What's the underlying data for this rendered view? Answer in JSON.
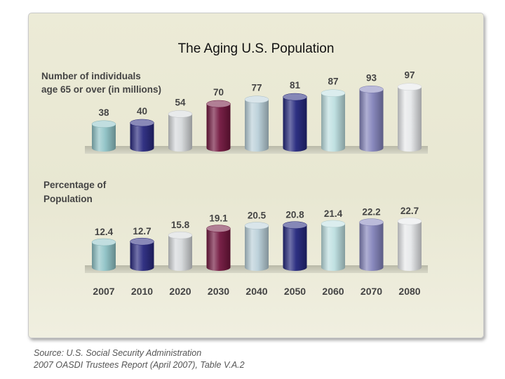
{
  "chart_data": {
    "type": "bar",
    "title": "The Aging U.S. Population",
    "categories": [
      "2007",
      "2010",
      "2020",
      "2030",
      "2040",
      "2050",
      "2060",
      "2070",
      "2080"
    ],
    "bar_colors": [
      "#8fc3c6",
      "#28287e",
      "#d6d9db",
      "#72163e",
      "#b9d0d9",
      "#23267c",
      "#bddfe0",
      "#8484bc",
      "#e6e8ea"
    ],
    "series": [
      {
        "name_lines": [
          "Number of individuals",
          "age 65 or over (in millions)"
        ],
        "values": [
          38,
          40,
          54,
          70,
          77,
          81,
          87,
          93,
          97
        ],
        "labels": [
          "38",
          "40",
          "54",
          "70",
          "77",
          "81",
          "87",
          "93",
          "97"
        ]
      },
      {
        "name_lines": [
          "Percentage of",
          "Population"
        ],
        "values": [
          12.4,
          12.7,
          15.8,
          19.1,
          20.5,
          20.8,
          21.4,
          22.2,
          22.7
        ],
        "labels": [
          "12.4",
          "12.7",
          "15.8",
          "19.1",
          "20.5",
          "20.8",
          "21.4",
          "22.2",
          "22.7"
        ]
      }
    ]
  },
  "source": {
    "line1": "Source: U.S. Social Security Administration",
    "line2": "2007 OASDI Trustees Report (April 2007), Table V.A.2"
  }
}
